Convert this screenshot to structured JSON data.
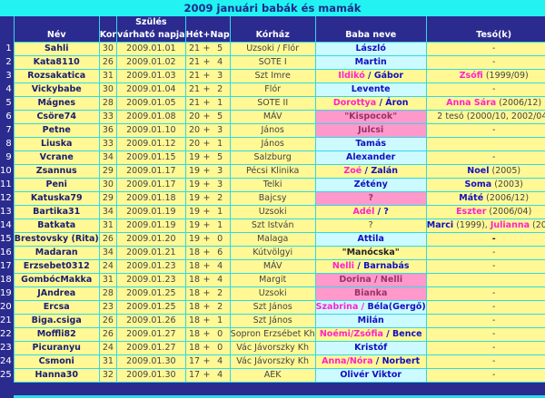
{
  "title": "2009 januári babák és mamák",
  "headers": {
    "nev": "Név",
    "kor": "Kor",
    "szules_1": "Szülés",
    "szules_2": "várható napja",
    "het": "Hét",
    "plus": "+",
    "nap": "Nap",
    "korhaz": "Kórház",
    "baba": "Baba neve",
    "teso": "Tesó(k)"
  },
  "colors": {
    "girl": "#ff22cc",
    "boy": "#1010c0",
    "pink_text": "#993366",
    "neutral": "#222222",
    "boy_bg": "#ccfaff",
    "girl_bg": "#ff99cc",
    "row_bg": "#fff894",
    "header_bg": "#2b2b8f",
    "title_bg": "#22f2f2"
  },
  "rows": [
    {
      "n": "1",
      "nev": "Sahli",
      "kor": "30",
      "datum": "2009.01.01",
      "het": "21",
      "nap": "5",
      "korhaz": "Uzsoki / Flór",
      "bg": "boy",
      "baba": [
        {
          "t": "László",
          "c": "boy"
        }
      ],
      "teso": [
        {
          "t": "-"
        }
      ]
    },
    {
      "n": "2",
      "nev": "Kata8110",
      "kor": "26",
      "datum": "2009.01.02",
      "het": "21",
      "nap": "4",
      "korhaz": "SOTE I",
      "bg": "boy",
      "baba": [
        {
          "t": "Martin",
          "c": "boy"
        }
      ],
      "teso": [
        {
          "t": "-"
        }
      ]
    },
    {
      "n": "3",
      "nev": "Rozsakatica",
      "kor": "31",
      "datum": "2009.01.03",
      "het": "21",
      "nap": "3",
      "korhaz": "Szt Imre",
      "bg": "",
      "baba": [
        {
          "t": "Ildikó",
          "c": "girl"
        },
        {
          "t": " / ",
          "c": "boy"
        },
        {
          "t": "Gábor",
          "c": "boy"
        }
      ],
      "teso": [
        {
          "t": "Zsófi",
          "c": "girl"
        },
        {
          "t": " (1999/09)"
        }
      ]
    },
    {
      "n": "4",
      "nev": "Vickybabe",
      "kor": "30",
      "datum": "2009.01.04",
      "het": "21",
      "nap": "2",
      "korhaz": "Flór",
      "bg": "boy",
      "baba": [
        {
          "t": "Levente",
          "c": "boy"
        }
      ],
      "teso": [
        {
          "t": "-"
        }
      ]
    },
    {
      "n": "5",
      "nev": "Mágnes",
      "kor": "28",
      "datum": "2009.01.05",
      "het": "21",
      "nap": "1",
      "korhaz": "SOTE II",
      "bg": "",
      "baba": [
        {
          "t": "Dorottya",
          "c": "girl"
        },
        {
          "t": " / ",
          "c": "boy"
        },
        {
          "t": "Áron",
          "c": "boy"
        }
      ],
      "teso": [
        {
          "t": "Anna Sára",
          "c": "girl"
        },
        {
          "t": " (2006/12)"
        }
      ]
    },
    {
      "n": "6",
      "nev": "Csöre74",
      "kor": "33",
      "datum": "2009.01.08",
      "het": "20",
      "nap": "5",
      "korhaz": "MÁV",
      "bg": "girl",
      "baba": [
        {
          "t": "\"Kispocok\"",
          "c": "pink_text"
        }
      ],
      "teso": [
        {
          "t": "2 tesó (2000/10, 2002/04)"
        }
      ]
    },
    {
      "n": "7",
      "nev": "Petne",
      "kor": "36",
      "datum": "2009.01.10",
      "het": "20",
      "nap": "3",
      "korhaz": "János",
      "bg": "girl",
      "baba": [
        {
          "t": "Julcsi",
          "c": "pink_text"
        }
      ],
      "teso": [
        {
          "t": "-"
        }
      ]
    },
    {
      "n": "8",
      "nev": "Liuska",
      "kor": "33",
      "datum": "2009.01.12",
      "het": "20",
      "nap": "1",
      "korhaz": "János",
      "bg": "boy",
      "baba": [
        {
          "t": "Tamás",
          "c": "boy"
        }
      ],
      "teso": []
    },
    {
      "n": "9",
      "nev": "Vcrane",
      "kor": "34",
      "datum": "2009.01.15",
      "het": "19",
      "nap": "5",
      "korhaz": "Salzburg",
      "bg": "boy",
      "baba": [
        {
          "t": "Alexander",
          "c": "boy"
        }
      ],
      "teso": [
        {
          "t": "-"
        }
      ]
    },
    {
      "n": "10",
      "nev": "Zsannus",
      "kor": "29",
      "datum": "2009.01.17",
      "het": "19",
      "nap": "3",
      "korhaz": "Pécsi Klinika",
      "bg": "",
      "baba": [
        {
          "t": "Zoé",
          "c": "girl"
        },
        {
          "t": " / ",
          "c": "boy"
        },
        {
          "t": "Zalán",
          "c": "boy"
        }
      ],
      "teso": [
        {
          "t": "Noel",
          "c": "boy"
        },
        {
          "t": " (2005)"
        }
      ]
    },
    {
      "n": "11",
      "nev": "Peni",
      "kor": "30",
      "datum": "2009.01.17",
      "het": "19",
      "nap": "3",
      "korhaz": "Telki",
      "bg": "boy",
      "baba": [
        {
          "t": "Zétény",
          "c": "boy"
        }
      ],
      "teso": [
        {
          "t": "Soma",
          "c": "boy"
        },
        {
          "t": " (2003)"
        }
      ]
    },
    {
      "n": "12",
      "nev": "Katuska79",
      "kor": "29",
      "datum": "2009.01.18",
      "het": "19",
      "nap": "2",
      "korhaz": "Bajcsy",
      "bg": "girl",
      "baba": [
        {
          "t": "?",
          "c": "pink_text"
        }
      ],
      "teso": [
        {
          "t": "Máté",
          "c": "boy"
        },
        {
          "t": " (2006/12)"
        }
      ]
    },
    {
      "n": "13",
      "nev": "Bartika31",
      "kor": "34",
      "datum": "2009.01.19",
      "het": "19",
      "nap": "1",
      "korhaz": "Uzsoki",
      "bg": "",
      "baba": [
        {
          "t": "Adél",
          "c": "girl"
        },
        {
          "t": " / ?",
          "c": "boy"
        }
      ],
      "teso": [
        {
          "t": "Eszter",
          "c": "girl"
        },
        {
          "t": " (2006/04)"
        }
      ]
    },
    {
      "n": "14",
      "nev": "Batkata",
      "kor": "31",
      "datum": "2009.01.19",
      "het": "19",
      "nap": "1",
      "korhaz": "Szt István",
      "bg": "",
      "baba": [
        {
          "t": "?"
        }
      ],
      "teso": [
        {
          "t": "Marci",
          "c": "boy"
        },
        {
          "t": " (1999), "
        },
        {
          "t": "Julianna",
          "c": "girl"
        },
        {
          "t": " (2002)"
        }
      ]
    },
    {
      "n": "15",
      "nev": "Brestovsky (Rita)",
      "kor": "26",
      "datum": "2009.01.20",
      "het": "19",
      "nap": "0",
      "korhaz": "Malaga",
      "bg": "boy",
      "baba": [
        {
          "t": "Attila",
          "c": "boy"
        }
      ],
      "teso": [
        {
          "t": "-",
          "c": "neutral"
        }
      ]
    },
    {
      "n": "16",
      "nev": "Madaran",
      "kor": "34",
      "datum": "2009.01.21",
      "het": "18",
      "nap": "6",
      "korhaz": "Kútvölgyi",
      "bg": "",
      "baba": [
        {
          "t": "\"Manócska\"",
          "c": "neutral"
        }
      ],
      "teso": [
        {
          "t": "-"
        }
      ]
    },
    {
      "n": "17",
      "nev": "Erzsebet0312",
      "kor": "24",
      "datum": "2009.01.23",
      "het": "18",
      "nap": "4",
      "korhaz": "MÁV",
      "bg": "",
      "baba": [
        {
          "t": "Nelli",
          "c": "girl"
        },
        {
          "t": " / ",
          "c": "boy"
        },
        {
          "t": "Barnabás",
          "c": "boy"
        }
      ],
      "teso": [
        {
          "t": "-"
        }
      ]
    },
    {
      "n": "18",
      "nev": "GombócMakka",
      "kor": "31",
      "datum": "2009.01.23",
      "het": "18",
      "nap": "4",
      "korhaz": "Margit",
      "bg": "girl",
      "baba": [
        {
          "t": "Dorina / Nelli",
          "c": "pink_text"
        }
      ],
      "teso": []
    },
    {
      "n": "19",
      "nev": "JAndrea",
      "kor": "28",
      "datum": "2009.01.25",
      "het": "18",
      "nap": "2",
      "korhaz": "Uzsoki",
      "bg": "girl",
      "baba": [
        {
          "t": "Bianka",
          "c": "pink_text"
        }
      ],
      "teso": [
        {
          "t": "-"
        }
      ]
    },
    {
      "n": "20",
      "nev": "Ercsa",
      "kor": "23",
      "datum": "2009.01.25",
      "het": "18",
      "nap": "2",
      "korhaz": "Szt János",
      "bg": "boy",
      "baba": [
        {
          "t": "Szabrina",
          "c": "girl"
        },
        {
          "t": " / ",
          "c": "girl"
        },
        {
          "t": "Béla(Gergő)",
          "c": "boy"
        }
      ],
      "teso": [
        {
          "t": "-"
        }
      ]
    },
    {
      "n": "21",
      "nev": "Biga.csiga",
      "kor": "26",
      "datum": "2009.01.26",
      "het": "18",
      "nap": "1",
      "korhaz": "Szt János",
      "bg": "boy",
      "baba": [
        {
          "t": "Milán",
          "c": "boy"
        }
      ],
      "teso": [
        {
          "t": "-"
        }
      ]
    },
    {
      "n": "22",
      "nev": "Moffli82",
      "kor": "26",
      "datum": "2009.01.27",
      "het": "18",
      "nap": "0",
      "korhaz": "Sopron Erzsébet Kh",
      "bg": "",
      "baba": [
        {
          "t": "Noémi/Zsófia",
          "c": "girl"
        },
        {
          "t": " / ",
          "c": "boy"
        },
        {
          "t": "Bence",
          "c": "boy"
        }
      ],
      "teso": [
        {
          "t": "-"
        }
      ]
    },
    {
      "n": "23",
      "nev": "Picuranyu",
      "kor": "24",
      "datum": "2009.01.27",
      "het": "18",
      "nap": "0",
      "korhaz": "Vác Jávorszky Kh",
      "bg": "boy",
      "baba": [
        {
          "t": "Kristóf",
          "c": "boy"
        }
      ],
      "teso": [
        {
          "t": "-"
        }
      ]
    },
    {
      "n": "24",
      "nev": "Csmoni",
      "kor": "31",
      "datum": "2009.01.30",
      "het": "17",
      "nap": "4",
      "korhaz": "Vác Jávorszky Kh",
      "bg": "",
      "baba": [
        {
          "t": "Anna/Nóra",
          "c": "girl"
        },
        {
          "t": " / ",
          "c": "boy"
        },
        {
          "t": "Norbert",
          "c": "boy"
        }
      ],
      "teso": [
        {
          "t": "-"
        }
      ]
    },
    {
      "n": "25",
      "nev": "Hanna30",
      "kor": "32",
      "datum": "2009.01.30",
      "het": "17",
      "nap": "4",
      "korhaz": "AEK",
      "bg": "boy",
      "baba": [
        {
          "t": "Olivér Viktor",
          "c": "boy"
        }
      ],
      "teso": [
        {
          "t": "-"
        }
      ]
    }
  ]
}
